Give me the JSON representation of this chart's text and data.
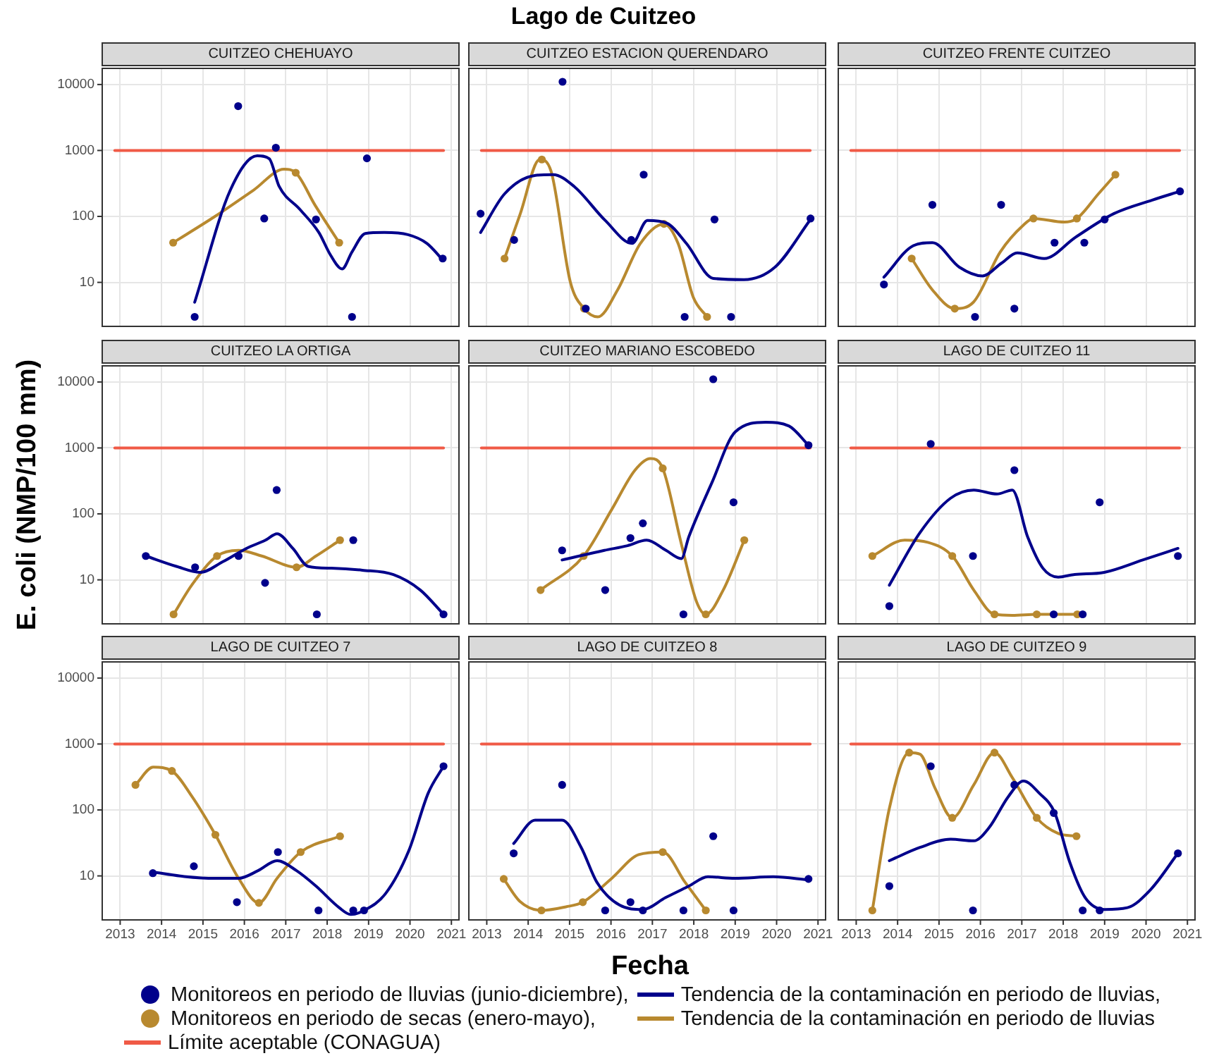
{
  "chart_data": [
    {
      "type": "scatter",
      "title": "CUITZEO CHEHUAYO",
      "annotations": [
        "Lago de Cuitzeo"
      ],
      "legend": "bottom",
      "line_style": "solid",
      "grid": true,
      "log": "y",
      "tick_labels": "y",
      "xlim": [
        2012.55,
        2021.2
      ],
      "xticks": [
        2013,
        2014,
        2015,
        2016,
        2017,
        2018,
        2019,
        2020,
        2021
      ],
      "ylim": [
        2.1,
        18000
      ],
      "yticks": [
        10,
        100,
        1000,
        10000
      ],
      "series": [
        {
          "type": "scatter",
          "name": "Monitoreos en periodo de lluvias (junio-diciembre),",
          "color": "#00008b",
          "x": [
            2014.8,
            2015.85,
            2016.48,
            2016.76,
            2017.73,
            2018.6,
            2018.96,
            2020.79
          ],
          "values": [
            3,
            4700,
            93,
            1100,
            90,
            3,
            760,
            23
          ]
        },
        {
          "type": "line",
          "name": "Tendencia de la contaminación en periodo de lluvias,",
          "color": "#00008b",
          "x": [
            2014.8,
            2015.66,
            2016.31,
            2016.6,
            2016.84,
            2017.34,
            2017.8,
            2018.08,
            2018.36,
            2018.6,
            2018.92,
            2019.38,
            2019.95,
            2020.41,
            2020.79
          ],
          "values": [
            5,
            250,
            830,
            750,
            285,
            128,
            57,
            26,
            16,
            29,
            55,
            57,
            53,
            39,
            22
          ]
        },
        {
          "type": "scatter",
          "name": "Monitoreos en periodo de secas (enero-mayo),",
          "color": "#b8892f",
          "x": [
            2014.28,
            2017.24,
            2018.29
          ],
          "values": [
            40,
            460,
            40
          ]
        },
        {
          "type": "line",
          "name": "Tendencia de la contaminación en periodo de lluvias",
          "color": "#b8892f",
          "x": [
            2014.28,
            2015.29,
            2016.22,
            2016.96,
            2017.24,
            2017.71,
            2018.29
          ],
          "values": [
            40,
            100,
            250,
            520,
            460,
            147,
            40
          ]
        },
        {
          "type": "line",
          "name": "Límite aceptable (CONAGUA)",
          "color": "#f05a46",
          "x": [
            2012.87,
            2020.81
          ],
          "values": [
            1000,
            1000
          ]
        }
      ]
    },
    {
      "type": "scatter",
      "title": "CUITZEO ESTACION QUERENDARO",
      "line_style": "solid",
      "grid": true,
      "log": "y",
      "tick_labels": false,
      "xlim": [
        2012.55,
        2021.2
      ],
      "xticks": [
        2013,
        2014,
        2015,
        2016,
        2017,
        2018,
        2019,
        2020,
        2021
      ],
      "ylim": [
        2.1,
        18000
      ],
      "yticks": [
        10,
        100,
        1000,
        10000
      ],
      "series": [
        {
          "type": "scatter",
          "color": "#00008b",
          "x": [
            2012.85,
            2013.66,
            2014.83,
            2015.39,
            2016.49,
            2016.79,
            2017.78,
            2018.5,
            2018.9,
            2020.82
          ],
          "values": [
            110,
            44,
            11000,
            4,
            44,
            430,
            3,
            90,
            3,
            93
          ]
        },
        {
          "type": "line",
          "color": "#00008b",
          "x": [
            2012.85,
            2013.43,
            2014.18,
            2014.6,
            2015.11,
            2015.86,
            2016.51,
            2016.88,
            2017.35,
            2017.82,
            2018.47,
            2019.21,
            2019.96,
            2020.82
          ],
          "values": [
            57,
            220,
            420,
            430,
            285,
            87,
            39,
            87,
            79,
            39,
            11.5,
            11,
            17,
            90
          ]
        },
        {
          "type": "scatter",
          "color": "#b8892f",
          "x": [
            2013.43,
            2014.33,
            2015.35,
            2017.28,
            2018.32
          ],
          "values": [
            23,
            730,
            4,
            77,
            3
          ]
        },
        {
          "type": "line",
          "color": "#b8892f",
          "x": [
            2013.43,
            2013.81,
            2014.28,
            2014.55,
            2015.02,
            2015.35,
            2015.68,
            2016.16,
            2016.71,
            2017.28,
            2017.62,
            2017.99,
            2018.32
          ],
          "values": [
            23,
            110,
            730,
            490,
            10,
            4,
            3,
            7.7,
            39,
            77,
            39,
            5.9,
            3
          ]
        },
        {
          "type": "line",
          "color": "#f05a46",
          "x": [
            2012.87,
            2020.81
          ],
          "values": [
            1000,
            1000
          ]
        }
      ]
    },
    {
      "type": "scatter",
      "title": "CUITZEO FRENTE CUITZEO",
      "line_style": "solid",
      "grid": true,
      "log": "y",
      "tick_labels": false,
      "xlim": [
        2012.55,
        2021.2
      ],
      "xticks": [
        2013,
        2014,
        2015,
        2016,
        2017,
        2018,
        2019,
        2020,
        2021
      ],
      "ylim": [
        2.1,
        18000
      ],
      "yticks": [
        10,
        100,
        1000,
        10000
      ],
      "series": [
        {
          "type": "scatter",
          "color": "#00008b",
          "x": [
            2013.67,
            2014.84,
            2015.87,
            2016.5,
            2016.82,
            2017.79,
            2018.51,
            2019.0,
            2020.82
          ],
          "values": [
            9.3,
            150,
            3,
            150,
            4,
            40,
            40,
            90,
            240
          ]
        },
        {
          "type": "line",
          "color": "#00008b",
          "x": [
            2013.67,
            2014.38,
            2014.84,
            2015.49,
            2016.05,
            2016.51,
            2016.89,
            2017.54,
            2018.29,
            2019.22,
            2020.15,
            2020.82
          ],
          "values": [
            12,
            36,
            40,
            17,
            12.5,
            19.6,
            28,
            23,
            48,
            110,
            177,
            240
          ]
        },
        {
          "type": "scatter",
          "color": "#b8892f",
          "x": [
            2014.34,
            2015.38,
            2017.28,
            2018.33,
            2019.26
          ],
          "values": [
            23,
            4,
            93,
            93,
            430
          ]
        },
        {
          "type": "line",
          "color": "#b8892f",
          "x": [
            2014.34,
            2014.84,
            2015.38,
            2015.83,
            2016.48,
            2017.04,
            2017.28,
            2018.03,
            2018.33,
            2018.85,
            2019.26
          ],
          "values": [
            23,
            7.7,
            4,
            5,
            29,
            74,
            93,
            82,
            93,
            220,
            430
          ]
        },
        {
          "type": "line",
          "color": "#f05a46",
          "x": [
            2012.87,
            2020.81
          ],
          "values": [
            1000,
            1000
          ]
        }
      ]
    },
    {
      "type": "scatter",
      "title": "CUITZEO LA ORTIGA",
      "ylabel": "E. coli  (NMP/100 mm)",
      "line_style": "solid",
      "grid": true,
      "log": "y",
      "tick_labels": "y",
      "xlim": [
        2012.55,
        2021.2
      ],
      "xticks": [
        2013,
        2014,
        2015,
        2016,
        2017,
        2018,
        2019,
        2020,
        2021
      ],
      "ylim": [
        2.1,
        18000
      ],
      "yticks": [
        10,
        100,
        1000,
        10000
      ],
      "series": [
        {
          "type": "scatter",
          "color": "#00008b",
          "x": [
            2013.62,
            2014.81,
            2015.86,
            2016.5,
            2016.78,
            2017.75,
            2018.63,
            2020.81
          ],
          "values": [
            23,
            15.5,
            23,
            9,
            230,
            3,
            40,
            3
          ]
        },
        {
          "type": "line",
          "color": "#00008b",
          "x": [
            2013.62,
            2014.36,
            2014.93,
            2015.49,
            2016.05,
            2016.51,
            2016.79,
            2017.17,
            2017.54,
            2018.1,
            2018.85,
            2019.6,
            2020.25,
            2020.81
          ],
          "values": [
            23,
            16,
            13,
            19,
            30,
            40,
            50,
            30,
            16,
            15,
            14,
            12,
            7,
            3
          ]
        },
        {
          "type": "scatter",
          "color": "#b8892f",
          "x": [
            2014.29,
            2015.34,
            2017.26,
            2018.31
          ],
          "values": [
            3,
            23,
            15.5,
            40
          ]
        },
        {
          "type": "line",
          "color": "#b8892f",
          "x": [
            2014.29,
            2014.74,
            2015.34,
            2015.86,
            2016.42,
            2017.26,
            2017.73,
            2018.31
          ],
          "values": [
            3,
            8.5,
            23,
            28,
            23,
            15.5,
            23,
            40
          ]
        },
        {
          "type": "line",
          "color": "#f05a46",
          "x": [
            2012.87,
            2020.81
          ],
          "values": [
            1000,
            1000
          ]
        }
      ]
    },
    {
      "type": "scatter",
      "title": "CUITZEO MARIANO ESCOBEDO",
      "line_style": "solid",
      "grid": true,
      "log": "y",
      "tick_labels": false,
      "xlim": [
        2012.55,
        2021.2
      ],
      "xticks": [
        2013,
        2014,
        2015,
        2016,
        2017,
        2018,
        2019,
        2020,
        2021
      ],
      "ylim": [
        2.1,
        18000
      ],
      "yticks": [
        10,
        100,
        1000,
        10000
      ],
      "series": [
        {
          "type": "scatter",
          "color": "#00008b",
          "x": [
            2014.82,
            2015.86,
            2016.47,
            2016.77,
            2017.75,
            2018.47,
            2018.96,
            2020.77
          ],
          "values": [
            28,
            7,
            43,
            72,
            3,
            11000,
            150,
            1100
          ]
        },
        {
          "type": "line",
          "color": "#00008b",
          "x": [
            2014.82,
            2015.84,
            2016.4,
            2016.86,
            2017.33,
            2017.7,
            2017.88,
            2018.44,
            2019.0,
            2019.74,
            2020.3,
            2020.77
          ],
          "values": [
            20,
            28,
            33,
            40,
            28,
            21,
            45,
            300,
            1750,
            2450,
            2150,
            1100
          ]
        },
        {
          "type": "scatter",
          "color": "#b8892f",
          "x": [
            2014.3,
            2015.34,
            2017.25,
            2018.29,
            2019.22
          ],
          "values": [
            7,
            23,
            490,
            3,
            40
          ]
        },
        {
          "type": "line",
          "color": "#b8892f",
          "x": [
            2014.3,
            2015.34,
            2016.02,
            2016.58,
            2016.95,
            2017.25,
            2017.7,
            2018.07,
            2018.29,
            2018.71,
            2019.22
          ],
          "values": [
            7,
            23,
            117,
            460,
            690,
            490,
            35,
            4.6,
            3,
            7,
            40
          ]
        },
        {
          "type": "line",
          "color": "#f05a46",
          "x": [
            2012.87,
            2020.81
          ],
          "values": [
            1000,
            1000
          ]
        }
      ]
    },
    {
      "type": "scatter",
      "title": "LAGO DE CUITZEO 11",
      "line_style": "solid",
      "grid": true,
      "log": "y",
      "tick_labels": false,
      "xlim": [
        2012.55,
        2021.2
      ],
      "xticks": [
        2013,
        2014,
        2015,
        2016,
        2017,
        2018,
        2019,
        2020,
        2021
      ],
      "ylim": [
        2.1,
        18000
      ],
      "yticks": [
        10,
        100,
        1000,
        10000
      ],
      "series": [
        {
          "type": "scatter",
          "color": "#00008b",
          "x": [
            2013.8,
            2014.8,
            2015.82,
            2016.82,
            2017.77,
            2018.47,
            2018.88,
            2020.77
          ],
          "values": [
            4,
            1150,
            23,
            460,
            3,
            3,
            150,
            23
          ]
        },
        {
          "type": "line",
          "color": "#00008b",
          "x": [
            2013.8,
            2014.54,
            2015.28,
            2015.84,
            2016.4,
            2016.77,
            2017.14,
            2017.51,
            2017.88,
            2018.25,
            2018.99,
            2019.92,
            2020.77
          ],
          "values": [
            8.3,
            52,
            173,
            230,
            200,
            230,
            45,
            15,
            11,
            12,
            13,
            20,
            30
          ]
        },
        {
          "type": "scatter",
          "color": "#b8892f",
          "x": [
            2013.39,
            2015.32,
            2016.34,
            2017.36,
            2018.34
          ],
          "values": [
            23,
            23,
            3,
            3,
            3
          ]
        },
        {
          "type": "line",
          "color": "#b8892f",
          "x": [
            2013.39,
            2014.17,
            2014.73,
            2015.32,
            2015.84,
            2016.34,
            2016.77,
            2017.36,
            2018.34
          ],
          "values": [
            23,
            40,
            37,
            23,
            7,
            3,
            2.9,
            3,
            3
          ]
        },
        {
          "type": "line",
          "color": "#f05a46",
          "x": [
            2012.87,
            2020.81
          ],
          "values": [
            1000,
            1000
          ]
        }
      ]
    },
    {
      "type": "scatter",
      "title": "LAGO DE CUITZEO 7",
      "line_style": "solid",
      "grid": true,
      "log": "y",
      "xlim": [
        2012.55,
        2021.2
      ],
      "xticks": [
        2013,
        2014,
        2015,
        2016,
        2017,
        2018,
        2019,
        2020,
        2021
      ],
      "ylim": [
        2.1,
        18000
      ],
      "yticks": [
        10,
        100,
        1000,
        10000
      ],
      "series": [
        {
          "type": "scatter",
          "color": "#00008b",
          "x": [
            2013.79,
            2014.78,
            2015.82,
            2016.81,
            2017.79,
            2018.63,
            2018.89,
            2020.81
          ],
          "values": [
            11,
            14,
            4,
            23,
            3,
            3,
            3,
            460
          ]
        },
        {
          "type": "line",
          "color": "#00008b",
          "x": [
            2013.79,
            2014.55,
            2015.3,
            2015.86,
            2016.33,
            2016.79,
            2017.26,
            2017.73,
            2018.29,
            2018.57,
            2018.89,
            2019.41,
            2019.97,
            2020.44,
            2020.81
          ],
          "values": [
            11.5,
            9.8,
            9.2,
            9.2,
            12,
            17,
            12,
            7,
            3.3,
            2.6,
            3,
            5.4,
            24,
            180,
            460
          ]
        },
        {
          "type": "scatter",
          "color": "#b8892f",
          "x": [
            2013.37,
            2014.25,
            2015.3,
            2016.35,
            2017.36,
            2018.31
          ],
          "values": [
            240,
            390,
            42,
            3.9,
            23,
            40
          ]
        },
        {
          "type": "line",
          "color": "#b8892f",
          "x": [
            2013.37,
            2013.8,
            2014.25,
            2014.74,
            2015.3,
            2015.86,
            2016.35,
            2016.79,
            2017.36,
            2018.31
          ],
          "values": [
            240,
            445,
            390,
            158,
            42,
            9.2,
            3.9,
            9.2,
            23,
            40
          ]
        },
        {
          "type": "line",
          "color": "#f05a46",
          "x": [
            2012.87,
            2020.81
          ],
          "values": [
            1000,
            1000
          ]
        }
      ]
    },
    {
      "type": "scatter",
      "title": "LAGO DE CUITZEO 8",
      "xlabel": "Fecha",
      "line_style": "solid",
      "grid": true,
      "log": "y",
      "tick_labels": "x",
      "xlim": [
        2012.55,
        2021.2
      ],
      "xticks": [
        2013,
        2014,
        2015,
        2016,
        2017,
        2018,
        2019,
        2020,
        2021
      ],
      "ylim": [
        2.1,
        18000
      ],
      "yticks": [
        10,
        100,
        1000,
        10000
      ],
      "series": [
        {
          "type": "scatter",
          "color": "#00008b",
          "x": [
            2013.65,
            2014.82,
            2015.86,
            2016.47,
            2016.77,
            2017.75,
            2018.47,
            2018.96,
            2020.77
          ],
          "values": [
            22,
            240,
            3,
            4,
            3,
            3,
            40,
            3,
            9
          ]
        },
        {
          "type": "line",
          "color": "#00008b",
          "x": [
            2013.65,
            2014.17,
            2014.82,
            2015.28,
            2015.66,
            2016.21,
            2016.77,
            2017.32,
            2017.88,
            2018.34,
            2018.99,
            2019.92,
            2020.77
          ],
          "values": [
            31,
            70,
            70,
            27,
            8,
            3.6,
            3.1,
            4.7,
            7,
            9.7,
            9.2,
            9.7,
            8.7
          ]
        },
        {
          "type": "scatter",
          "color": "#b8892f",
          "x": [
            2013.41,
            2014.32,
            2015.32,
            2017.25,
            2018.29
          ],
          "values": [
            9,
            3,
            4,
            23,
            3
          ]
        },
        {
          "type": "line",
          "color": "#b8892f",
          "x": [
            2013.41,
            2013.8,
            2014.32,
            2014.91,
            2015.32,
            2016.02,
            2016.67,
            2017.25,
            2017.79,
            2018.29
          ],
          "values": [
            9,
            4.1,
            3,
            3.4,
            4,
            9.2,
            21,
            23,
            8,
            3
          ]
        },
        {
          "type": "line",
          "color": "#f05a46",
          "x": [
            2012.87,
            2020.81
          ],
          "values": [
            1000,
            1000
          ]
        }
      ]
    },
    {
      "type": "scatter",
      "title": "LAGO DE CUITZEO 9",
      "line_style": "solid",
      "grid": true,
      "log": "y",
      "tick_labels": "x",
      "xlim": [
        2012.55,
        2021.2
      ],
      "xticks": [
        2013,
        2014,
        2015,
        2016,
        2017,
        2018,
        2019,
        2020,
        2021
      ],
      "ylim": [
        2.1,
        18000
      ],
      "yticks": [
        10,
        100,
        1000,
        10000
      ],
      "series": [
        {
          "type": "scatter",
          "color": "#00008b",
          "x": [
            2013.8,
            2014.8,
            2015.82,
            2016.82,
            2017.77,
            2018.47,
            2018.88,
            2020.77
          ],
          "values": [
            7,
            460,
            3,
            240,
            90,
            3,
            3,
            22
          ]
        },
        {
          "type": "line",
          "color": "#00008b",
          "x": [
            2013.8,
            2014.54,
            2015.28,
            2015.84,
            2016.21,
            2016.67,
            2017.04,
            2017.42,
            2017.79,
            2018.16,
            2018.53,
            2019.0,
            2019.55,
            2020.11,
            2020.77
          ],
          "values": [
            17,
            27,
            36,
            34,
            54,
            158,
            275,
            180,
            92,
            16,
            4.7,
            3.1,
            3.3,
            6.2,
            22
          ]
        },
        {
          "type": "scatter",
          "color": "#b8892f",
          "x": [
            2013.39,
            2014.28,
            2015.32,
            2016.34,
            2017.36,
            2018.32
          ],
          "values": [
            3,
            740,
            76,
            740,
            76,
            40
          ]
        },
        {
          "type": "line",
          "color": "#b8892f",
          "x": [
            2013.39,
            2013.8,
            2014.28,
            2014.54,
            2014.91,
            2015.32,
            2015.84,
            2016.34,
            2016.77,
            2017.36,
            2017.88,
            2018.32
          ],
          "values": [
            3,
            105,
            740,
            700,
            210,
            76,
            240,
            740,
            310,
            76,
            44,
            40
          ]
        },
        {
          "type": "line",
          "color": "#f05a46",
          "x": [
            2012.87,
            2020.81
          ],
          "values": [
            1000,
            1000
          ]
        }
      ]
    }
  ]
}
